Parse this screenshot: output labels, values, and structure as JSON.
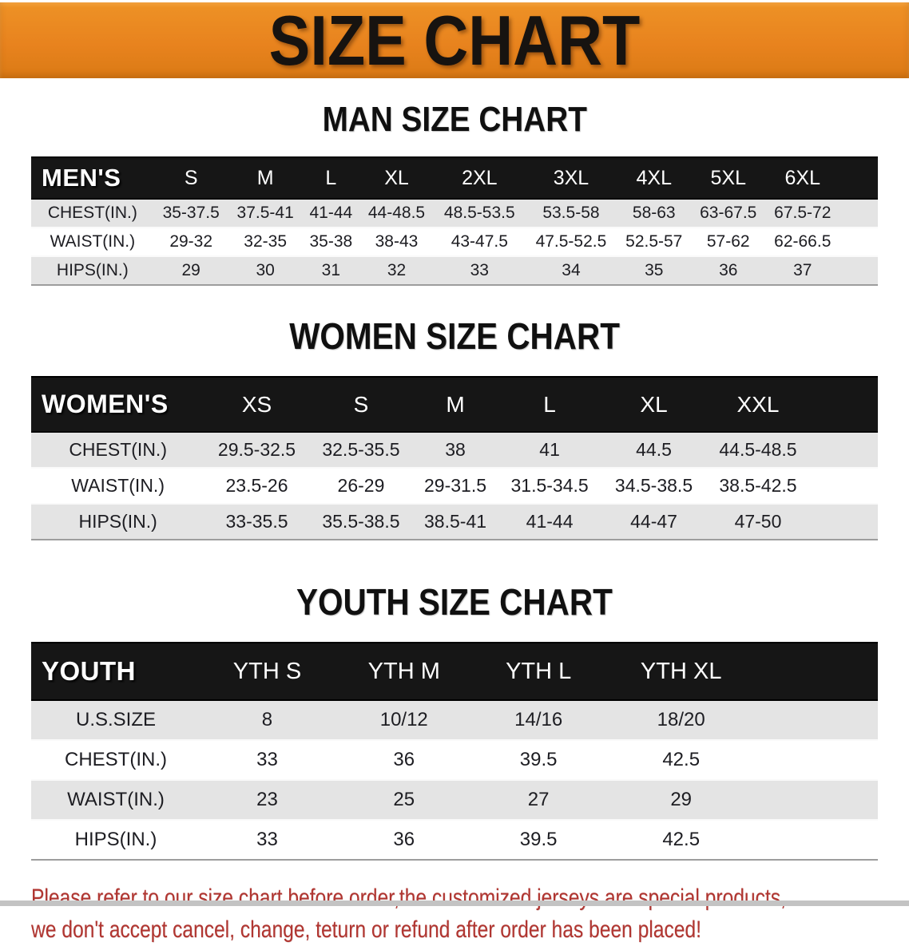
{
  "banner": {
    "title": "SIZE CHART"
  },
  "sections": [
    {
      "key": "mens",
      "heading": "MAN SIZE CHART",
      "header_label": "MEN'S",
      "columns": [
        "S",
        "M",
        "L",
        "XL",
        "2XL",
        "3XL",
        "4XL",
        "5XL",
        "6XL"
      ],
      "rows": [
        {
          "label": "CHEST(IN.)",
          "values": [
            "35-37.5",
            "37.5-41",
            "41-44",
            "44-48.5",
            "48.5-53.5",
            "53.5-58",
            "58-63",
            "63-67.5",
            "67.5-72"
          ]
        },
        {
          "label": "WAIST(IN.)",
          "values": [
            "29-32",
            "32-35",
            "35-38",
            "38-43",
            "43-47.5",
            "47.5-52.5",
            "52.5-57",
            "57-62",
            "62-66.5"
          ]
        },
        {
          "label": "HIPS(IN.)",
          "values": [
            "29",
            "30",
            "31",
            "32",
            "33",
            "34",
            "35",
            "36",
            "37"
          ]
        }
      ]
    },
    {
      "key": "womens",
      "heading": "WOMEN SIZE CHART",
      "header_label": "WOMEN'S",
      "columns": [
        "XS",
        "S",
        "M",
        "L",
        "XL",
        "XXL"
      ],
      "rows": [
        {
          "label": "CHEST(IN.)",
          "values": [
            "29.5-32.5",
            "32.5-35.5",
            "38",
            "41",
            "44.5",
            "44.5-48.5"
          ]
        },
        {
          "label": "WAIST(IN.)",
          "values": [
            "23.5-26",
            "26-29",
            "29-31.5",
            "31.5-34.5",
            "34.5-38.5",
            "38.5-42.5"
          ]
        },
        {
          "label": "HIPS(IN.)",
          "values": [
            "33-35.5",
            "35.5-38.5",
            "38.5-41",
            "41-44",
            "44-47",
            "47-50"
          ]
        }
      ]
    },
    {
      "key": "youth",
      "heading": "YOUTH SIZE CHART",
      "header_label": "YOUTH",
      "columns": [
        "YTH S",
        "YTH M",
        "YTH L",
        "YTH XL"
      ],
      "rows": [
        {
          "label": "U.S.SIZE",
          "values": [
            "8",
            "10/12",
            "14/16",
            "18/20"
          ]
        },
        {
          "label": "CHEST(IN.)",
          "values": [
            "33",
            "36",
            "39.5",
            "42.5"
          ]
        },
        {
          "label": "WAIST(IN.)",
          "values": [
            "23",
            "25",
            "27",
            "29"
          ]
        },
        {
          "label": "HIPS(IN.)",
          "values": [
            "33",
            "36",
            "39.5",
            "42.5"
          ]
        }
      ]
    }
  ],
  "footer_note": {
    "line1": "Please refer to our size chart before order,the customized jerseys are special products,",
    "line2": "we don't accept cancel, change, teturn or refund after order has been placed!"
  },
  "colors": {
    "banner_orange": "#E8831E",
    "banner_orange_light": "#EE9226",
    "banner_orange_dark": "#DB7A15",
    "header_bar_black": "#161616",
    "row_alt_gray": "#E4E4E4",
    "note_red": "#B13631",
    "bottom_strip_gray": "#C3C3C3"
  }
}
